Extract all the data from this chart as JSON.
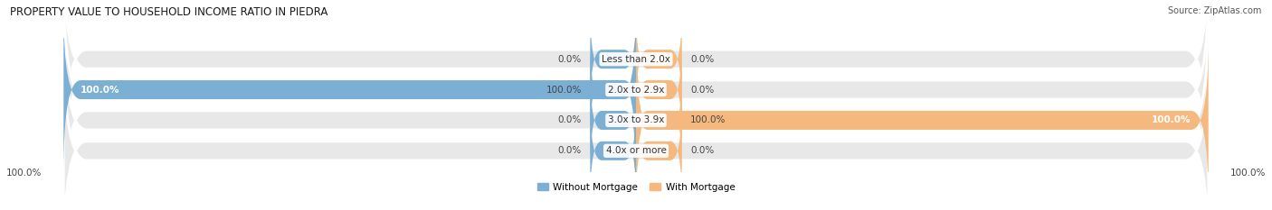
{
  "title": "PROPERTY VALUE TO HOUSEHOLD INCOME RATIO IN PIEDRA",
  "source": "Source: ZipAtlas.com",
  "categories": [
    "Less than 2.0x",
    "2.0x to 2.9x",
    "3.0x to 3.9x",
    "4.0x or more"
  ],
  "without_mortgage": [
    0.0,
    100.0,
    0.0,
    0.0
  ],
  "with_mortgage": [
    0.0,
    0.0,
    100.0,
    0.0
  ],
  "color_without": "#7bafd4",
  "color_with": "#f5b97f",
  "bg_bar": "#e8e8e8",
  "figsize": [
    14.06,
    2.33
  ],
  "dpi": 100,
  "title_fontsize": 8.5,
  "label_fontsize": 7.5,
  "source_fontsize": 7
}
